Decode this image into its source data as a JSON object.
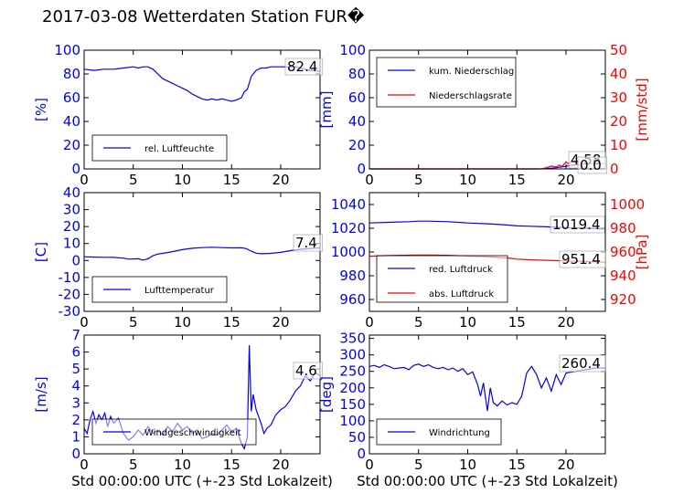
{
  "figure": {
    "title": "2017-03-08 Wetterdaten Station FUR�",
    "xlabel": "Std 00:00:00 UTC (+-23 Std Lokalzeit)",
    "colors": {
      "left_axis": "#0000ff",
      "right_axis": "#ff0000",
      "frame": "#000000"
    }
  },
  "chart_data": [
    {
      "type": "line",
      "id": "humidity",
      "ylabel": "[%]",
      "xlim": [
        0,
        24
      ],
      "ylim": [
        0,
        100
      ],
      "xticks": [
        0,
        5,
        10,
        15,
        20
      ],
      "yticks": [
        0,
        20,
        40,
        60,
        80,
        100
      ],
      "legend_loc": "lower-left",
      "last_value_label": "82.4",
      "series": [
        {
          "name": "rel. Luftfeuchte",
          "color": "#0000ff",
          "axis": "left",
          "x": [
            0,
            1,
            2,
            3,
            4,
            5,
            5.5,
            6,
            6.5,
            7,
            7.5,
            8,
            8.5,
            9,
            9.5,
            10,
            10.5,
            11,
            11.5,
            12,
            12.5,
            13,
            13.5,
            14,
            14.5,
            15,
            15.5,
            16,
            16.3,
            16.6,
            17,
            17.5,
            18,
            18.5,
            19,
            19.5,
            20,
            20.5,
            21,
            21.5,
            22,
            22.5,
            23,
            23.5,
            24
          ],
          "values": [
            84,
            83,
            84,
            84,
            85,
            86,
            85,
            86,
            86,
            84,
            80,
            76,
            74,
            72,
            70,
            68,
            66,
            63,
            61,
            59,
            58,
            59,
            58,
            59,
            58,
            57,
            58,
            60,
            65,
            67,
            78,
            83,
            85,
            85,
            86,
            86,
            86,
            86,
            86,
            86,
            85,
            84,
            83,
            83,
            82
          ]
        }
      ]
    },
    {
      "type": "line",
      "id": "precipitation",
      "ylabel": "[mm]",
      "ylabel_right": "[mm/std]",
      "xlim": [
        0,
        24
      ],
      "ylim": [
        0,
        100
      ],
      "ylim_right": [
        0,
        50
      ],
      "xticks": [
        0,
        5,
        10,
        15,
        20
      ],
      "yticks": [
        0,
        20,
        40,
        60,
        80,
        100
      ],
      "yticks_right": [
        0,
        10,
        20,
        30,
        40,
        50
      ],
      "legend_loc": "upper-left",
      "last_value_labels": [
        "4.58",
        "0.0"
      ],
      "series": [
        {
          "name": "kum. Niederschlag",
          "color": "#0000ff",
          "axis": "left",
          "x": [
            0,
            17,
            17.5,
            18,
            18.5,
            19,
            19.5,
            20,
            20.5,
            21,
            21.5,
            22,
            22.5,
            23,
            23.5,
            24
          ],
          "values": [
            0,
            0,
            0.1,
            0.3,
            0.6,
            1.0,
            1.6,
            2.2,
            2.9,
            3.5,
            3.9,
            4.2,
            4.4,
            4.5,
            4.58,
            4.58
          ]
        },
        {
          "name": "Niederschlagsrate",
          "color": "#ff0000",
          "axis": "right",
          "x": [
            0,
            17.5,
            18,
            18.5,
            19,
            19.3,
            19.6,
            20,
            20.3,
            20.6,
            21,
            21.3,
            21.6,
            22,
            22.5,
            23,
            24
          ],
          "values": [
            0,
            0,
            0.5,
            1.2,
            0.8,
            1.6,
            1.0,
            3.0,
            2.0,
            3.5,
            2.5,
            1.5,
            1.0,
            0.5,
            0.2,
            0,
            0
          ]
        }
      ]
    },
    {
      "type": "line",
      "id": "temperature",
      "ylabel": "[C]",
      "xlim": [
        0,
        24
      ],
      "ylim": [
        -30,
        40
      ],
      "xticks": [
        0,
        5,
        10,
        15,
        20
      ],
      "yticks": [
        -30,
        -20,
        -10,
        0,
        10,
        20,
        30,
        40
      ],
      "legend_loc": "lower-left",
      "last_value_label": "7.4",
      "series": [
        {
          "name": "Lufttemperatur",
          "color": "#0000ff",
          "axis": "left",
          "x": [
            0,
            1,
            2,
            3,
            4,
            4.5,
            5,
            5.5,
            6,
            6.5,
            7,
            7.5,
            8,
            9,
            10,
            11,
            12,
            13,
            14,
            15,
            16,
            16.5,
            17,
            17.5,
            18,
            19,
            20,
            21,
            22,
            23,
            24
          ],
          "values": [
            2.2,
            2.0,
            1.9,
            1.8,
            1.4,
            0.8,
            0.9,
            1.0,
            0.2,
            1.0,
            2.8,
            3.8,
            4.2,
            5.2,
            6.4,
            7.2,
            7.6,
            7.8,
            7.6,
            7.4,
            7.5,
            7.0,
            5.5,
            4.3,
            4.0,
            4.2,
            4.8,
            5.8,
            6.6,
            7.1,
            7.4
          ]
        }
      ]
    },
    {
      "type": "line",
      "id": "pressure",
      "ylabel_right": "[hPa]",
      "xlim": [
        0,
        24
      ],
      "ylim": [
        950,
        1050
      ],
      "ylim_right": [
        910,
        1010
      ],
      "xticks": [
        0,
        5,
        10,
        15,
        20
      ],
      "yticks": [
        960,
        980,
        1000,
        1020,
        1040
      ],
      "yticks_right": [
        920,
        940,
        960,
        980,
        1000
      ],
      "legend_loc": "lower-left",
      "last_value_labels": [
        "1019.4",
        "951.4"
      ],
      "series": [
        {
          "name": "red. Luftdruck",
          "color": "#0000ff",
          "axis": "left",
          "x": [
            0,
            2,
            4,
            5,
            6,
            8,
            10,
            12,
            14,
            15,
            16,
            18,
            20,
            22,
            24
          ],
          "values": [
            1024.5,
            1025,
            1025.5,
            1026,
            1026,
            1025.5,
            1024.5,
            1023.8,
            1022.8,
            1022,
            1021.8,
            1021.2,
            1020.5,
            1020,
            1019.4
          ]
        },
        {
          "name": "abs. Luftdruck",
          "color": "#ff0000",
          "axis": "right",
          "x": [
            0,
            2,
            4,
            5,
            6,
            8,
            10,
            12,
            14,
            15,
            16,
            18,
            20,
            22,
            24
          ],
          "values": [
            956.5,
            957,
            957.3,
            957.5,
            957.5,
            957.2,
            956.6,
            956,
            955,
            954,
            953.5,
            953,
            952.5,
            952,
            951.4
          ]
        }
      ]
    },
    {
      "type": "line",
      "id": "windspeed",
      "ylabel": "[m/s]",
      "xlim": [
        0,
        24
      ],
      "ylim": [
        0,
        7
      ],
      "xticks": [
        0,
        5,
        10,
        15,
        20
      ],
      "yticks": [
        0,
        1,
        2,
        3,
        4,
        5,
        6,
        7
      ],
      "legend_loc": "lower-left",
      "last_value_label": "4.6",
      "series": [
        {
          "name": "Windgeschwindigkeit",
          "color": "#0000ff",
          "axis": "left",
          "x": [
            0,
            0.3,
            0.6,
            0.9,
            1.2,
            1.5,
            1.8,
            2.1,
            2.4,
            2.7,
            3.0,
            3.5,
            4.0,
            4.5,
            5.0,
            5.5,
            6.0,
            6.5,
            7.0,
            7.5,
            8.0,
            8.5,
            9.0,
            9.5,
            10.0,
            10.5,
            11.0,
            11.5,
            12.0,
            12.5,
            13.0,
            13.5,
            14.0,
            14.5,
            15.0,
            15.5,
            16.0,
            16.3,
            16.6,
            16.8,
            17.0,
            17.2,
            17.5,
            18.0,
            18.3,
            18.6,
            19.0,
            19.5,
            20.0,
            20.5,
            21.0,
            21.5,
            22.0,
            22.5,
            23.0,
            23.5,
            24.0
          ],
          "values": [
            1.5,
            1.2,
            2.0,
            2.5,
            1.8,
            2.3,
            2.0,
            2.4,
            1.6,
            2.2,
            1.8,
            2.1,
            1.2,
            0.8,
            1.0,
            1.4,
            1.1,
            1.6,
            1.2,
            1.4,
            1.1,
            1.6,
            1.3,
            1.8,
            1.4,
            1.6,
            1.2,
            1.4,
            0.9,
            1.0,
            1.2,
            1.1,
            1.4,
            1.7,
            1.3,
            1.5,
            0.6,
            0.3,
            1.0,
            6.4,
            2.5,
            3.5,
            2.6,
            1.8,
            1.2,
            1.5,
            1.7,
            2.3,
            2.6,
            2.8,
            3.2,
            3.7,
            4.0,
            4.6,
            4.3,
            4.8,
            4.6
          ]
        }
      ]
    },
    {
      "type": "line",
      "id": "winddirection",
      "ylabel": "[deg]",
      "xlim": [
        0,
        24
      ],
      "ylim": [
        0,
        360
      ],
      "xticks": [
        0,
        5,
        10,
        15,
        20
      ],
      "yticks": [
        0,
        50,
        100,
        150,
        200,
        250,
        300,
        350
      ],
      "legend_loc": "lower-left",
      "last_value_label": "260.4",
      "series": [
        {
          "name": "Windrichtung",
          "color": "#0000ff",
          "axis": "left",
          "x": [
            0,
            0.5,
            1,
            1.5,
            2,
            2.5,
            3,
            3.5,
            4,
            4.5,
            5,
            5.5,
            6,
            6.5,
            7,
            7.5,
            8,
            8.5,
            9,
            9.5,
            10,
            10.5,
            11,
            11.3,
            11.6,
            12,
            12.3,
            12.6,
            13,
            13.5,
            14,
            14.5,
            15,
            15.5,
            16,
            16.5,
            17,
            17.5,
            18,
            18.5,
            19,
            19.5,
            20,
            21,
            22,
            23,
            24
          ],
          "values": [
            265,
            268,
            262,
            270,
            265,
            258,
            260,
            262,
            255,
            268,
            272,
            265,
            270,
            262,
            258,
            262,
            255,
            260,
            250,
            258,
            240,
            248,
            210,
            175,
            215,
            130,
            200,
            155,
            145,
            160,
            148,
            155,
            150,
            175,
            245,
            265,
            240,
            200,
            230,
            190,
            240,
            210,
            245,
            250,
            255,
            260,
            260
          ]
        }
      ]
    }
  ]
}
